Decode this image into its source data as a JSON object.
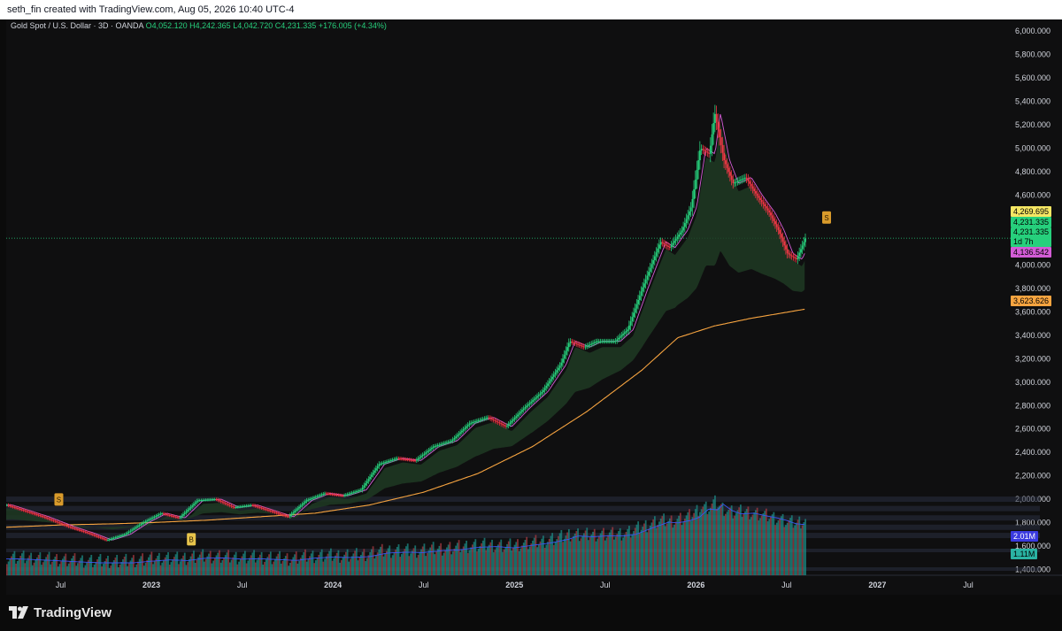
{
  "header": {
    "attribution": "seth_fin created with TradingView.com, Aug 05, 2026 10:40 UTC-4"
  },
  "legend": {
    "symbol": "Gold Spot / U.S. Dollar · 3D · OANDA",
    "open": "O4,052.120",
    "high": "H4,242.365",
    "low": "L4,042.720",
    "close": "C4,231.335",
    "change": "+176.005 (+4.34%)"
  },
  "price_tags": [
    {
      "label": "4,269.695",
      "bg": "#f5e663",
      "name": "price-tag-upper"
    },
    {
      "label": "4,231.335",
      "bg": "#26d07c",
      "name": "price-tag-last"
    },
    {
      "label": "4,231.335\n1d 7h",
      "bg": "#26d07c",
      "name": "price-tag-countdown"
    },
    {
      "label": "4,136.542",
      "bg": "#d35cd6",
      "name": "price-tag-lower"
    },
    {
      "label": "3,623.626",
      "bg": "#f7a440",
      "name": "price-tag-ma"
    },
    {
      "label": "2.01M",
      "bg": "#3a3adf",
      "name": "volume-tag-ma"
    },
    {
      "label": "1.11M",
      "bg": "#2ab3a3",
      "name": "volume-tag-last"
    }
  ],
  "markers": [
    {
      "label": "S",
      "name": "sell-marker-1"
    },
    {
      "label": "B",
      "name": "buy-marker"
    },
    {
      "label": "S",
      "name": "sell-marker-2"
    }
  ],
  "footer": {
    "brand": "TradingView"
  },
  "colors": {
    "up": "#26d07c",
    "down": "#f23645",
    "ma_fast": "#d35cd6",
    "ma_slow": "#f7a440",
    "cloud": "#1f3a23",
    "volume_ma": "#3a55f0"
  },
  "chart_data": {
    "type": "line",
    "title": "Gold Spot / U.S. Dollar · 3D · OANDA",
    "y_ticks": [
      "6,000.000",
      "5,800.000",
      "5,600.000",
      "5,400.000",
      "5,200.000",
      "5,000.000",
      "4,800.000",
      "4,600.000",
      "4,400.000",
      "4,200.000",
      "4,000.000",
      "3,800.000",
      "3,600.000",
      "3,400.000",
      "3,200.000",
      "3,000.000",
      "2,800.000",
      "2,600.000",
      "2,400.000",
      "2,200.000",
      "2,000.000",
      "1,800.000",
      "1,600.000",
      "1,400.000"
    ],
    "y_tick_values": [
      6000,
      5800,
      5600,
      5400,
      5200,
      5000,
      4800,
      4600,
      4400,
      4200,
      4000,
      3800,
      3600,
      3400,
      3200,
      3000,
      2800,
      2600,
      2400,
      2200,
      2000,
      1800,
      1600,
      1400
    ],
    "x_ticks": [
      "Jul",
      "2023",
      "Jul",
      "2024",
      "Jul",
      "2025",
      "Jul",
      "2026",
      "Jul",
      "2027",
      "Jul"
    ],
    "x_tick_values": [
      2022.5,
      2023.0,
      2023.5,
      2024.0,
      2024.5,
      2025.0,
      2025.5,
      2026.0,
      2026.5,
      2027.0,
      2027.5
    ],
    "xlim": [
      2022.2,
      2027.7
    ],
    "ylim": [
      1350,
      6100
    ],
    "series": [
      {
        "values": [
          [
            2022.2,
            1950
          ],
          [
            2022.3,
            1900
          ],
          [
            2022.4,
            1850
          ],
          [
            2022.55,
            1760
          ],
          [
            2022.65,
            1710
          ],
          [
            2022.75,
            1650
          ],
          [
            2022.85,
            1700
          ],
          [
            2022.95,
            1800
          ],
          [
            2023.05,
            1880
          ],
          [
            2023.15,
            1840
          ],
          [
            2023.25,
            1990
          ],
          [
            2023.35,
            2000
          ],
          [
            2023.45,
            1930
          ],
          [
            2023.55,
            1950
          ],
          [
            2023.65,
            1900
          ],
          [
            2023.75,
            1850
          ],
          [
            2023.85,
            1990
          ],
          [
            2023.95,
            2050
          ],
          [
            2024.05,
            2030
          ],
          [
            2024.15,
            2080
          ],
          [
            2024.25,
            2300
          ],
          [
            2024.35,
            2350
          ],
          [
            2024.45,
            2330
          ],
          [
            2024.55,
            2450
          ],
          [
            2024.65,
            2500
          ],
          [
            2024.75,
            2650
          ],
          [
            2024.85,
            2700
          ],
          [
            2024.95,
            2620
          ],
          [
            2025.05,
            2780
          ],
          [
            2025.15,
            2920
          ],
          [
            2025.25,
            3150
          ],
          [
            2025.3,
            3350
          ],
          [
            2025.38,
            3300
          ],
          [
            2025.45,
            3350
          ],
          [
            2025.55,
            3350
          ],
          [
            2025.62,
            3450
          ],
          [
            2025.7,
            3800
          ],
          [
            2025.75,
            4000
          ],
          [
            2025.8,
            4200
          ],
          [
            2025.85,
            4150
          ],
          [
            2025.92,
            4300
          ],
          [
            2025.97,
            4500
          ],
          [
            2026.02,
            5000
          ],
          [
            2026.07,
            4950
          ],
          [
            2026.1,
            5300
          ],
          [
            2026.15,
            4900
          ],
          [
            2026.2,
            4700
          ],
          [
            2026.27,
            4750
          ],
          [
            2026.33,
            4600
          ],
          [
            2026.4,
            4450
          ],
          [
            2026.45,
            4300
          ],
          [
            2026.5,
            4100
          ],
          [
            2026.55,
            4050
          ],
          [
            2026.6,
            4231
          ]
        ]
      },
      {
        "values": [
          [
            2022.2,
            1760
          ],
          [
            2022.5,
            1780
          ],
          [
            2022.8,
            1790
          ],
          [
            2023.0,
            1800
          ],
          [
            2023.3,
            1820
          ],
          [
            2023.6,
            1850
          ],
          [
            2023.9,
            1880
          ],
          [
            2024.2,
            1950
          ],
          [
            2024.5,
            2060
          ],
          [
            2024.8,
            2220
          ],
          [
            2025.1,
            2450
          ],
          [
            2025.4,
            2750
          ],
          [
            2025.7,
            3100
          ],
          [
            2025.9,
            3380
          ],
          [
            2026.1,
            3480
          ],
          [
            2026.3,
            3545
          ],
          [
            2026.6,
            3624
          ]
        ]
      }
    ],
    "volume": {
      "label_ma": "2.01M",
      "label_last": "1.11M"
    }
  }
}
